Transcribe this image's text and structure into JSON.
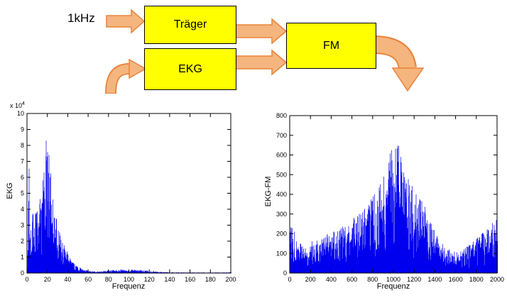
{
  "diagram": {
    "input_label": "1kHz",
    "blocks": {
      "traeger": {
        "label": "Träger"
      },
      "ekg": {
        "label": "EKG"
      },
      "fm": {
        "label": "FM"
      }
    },
    "colors": {
      "block_fill": "#FFFF00",
      "block_border": "#000000",
      "arrow_fill": "#F5B57E",
      "arrow_border": "#E8833A"
    }
  },
  "chart_data": [
    {
      "type": "line",
      "title": "",
      "xlabel": "Frequenz",
      "ylabel": "EKG",
      "xlim": [
        0,
        200
      ],
      "ylim": [
        0,
        10
      ],
      "xticks": [
        0,
        20,
        40,
        60,
        80,
        100,
        120,
        140,
        160,
        180,
        200
      ],
      "yticks": [
        0,
        1,
        2,
        3,
        4,
        5,
        6,
        7,
        8,
        9,
        10
      ],
      "y_multiplier": {
        "base": "x 10",
        "exp": "4"
      },
      "line_color": "#0000EE",
      "grid": false,
      "legend": null,
      "noise_seed": 20,
      "envelope": [
        [
          0,
          0.4
        ],
        [
          2,
          7.2
        ],
        [
          3,
          2.5
        ],
        [
          5,
          3.5
        ],
        [
          7,
          4.8
        ],
        [
          9,
          4.2
        ],
        [
          11,
          5.2
        ],
        [
          13,
          4.6
        ],
        [
          15,
          6.0
        ],
        [
          17,
          7.0
        ],
        [
          18,
          8.7
        ],
        [
          20,
          8.0
        ],
        [
          22,
          7.4
        ],
        [
          24,
          5.2
        ],
        [
          26,
          4.6
        ],
        [
          28,
          4.0
        ],
        [
          30,
          3.1
        ],
        [
          34,
          2.2
        ],
        [
          38,
          1.5
        ],
        [
          42,
          1.0
        ],
        [
          46,
          0.6
        ],
        [
          50,
          0.4
        ],
        [
          55,
          0.25
        ],
        [
          60,
          0.15
        ],
        [
          70,
          0.1
        ],
        [
          80,
          0.18
        ],
        [
          90,
          0.22
        ],
        [
          100,
          0.22
        ],
        [
          110,
          0.2
        ],
        [
          120,
          0.14
        ],
        [
          130,
          0.08
        ],
        [
          140,
          0.05
        ],
        [
          160,
          0.04
        ],
        [
          180,
          0.04
        ],
        [
          200,
          0.05
        ]
      ]
    },
    {
      "type": "line",
      "title": "",
      "xlabel": "Frequenz",
      "ylabel": "EKG-FM",
      "xlim": [
        0,
        2000
      ],
      "ylim": [
        0,
        800
      ],
      "xticks": [
        0,
        200,
        400,
        600,
        800,
        1000,
        1200,
        1400,
        1600,
        1800,
        2000
      ],
      "yticks": [
        0,
        100,
        200,
        300,
        400,
        500,
        600,
        700,
        800
      ],
      "y_multiplier": null,
      "line_color": "#0000EE",
      "grid": false,
      "legend": null,
      "noise_seed": 77,
      "envelope": [
        [
          0,
          280
        ],
        [
          50,
          200
        ],
        [
          100,
          160
        ],
        [
          150,
          150
        ],
        [
          200,
          160
        ],
        [
          250,
          170
        ],
        [
          300,
          180
        ],
        [
          350,
          195
        ],
        [
          400,
          215
        ],
        [
          450,
          225
        ],
        [
          500,
          235
        ],
        [
          550,
          255
        ],
        [
          600,
          275
        ],
        [
          650,
          305
        ],
        [
          700,
          325
        ],
        [
          750,
          355
        ],
        [
          800,
          390
        ],
        [
          850,
          430
        ],
        [
          900,
          490
        ],
        [
          950,
          570
        ],
        [
          1000,
          710
        ],
        [
          1030,
          680
        ],
        [
          1060,
          630
        ],
        [
          1090,
          570
        ],
        [
          1120,
          520
        ],
        [
          1150,
          480
        ],
        [
          1200,
          440
        ],
        [
          1250,
          390
        ],
        [
          1300,
          340
        ],
        [
          1350,
          270
        ],
        [
          1400,
          210
        ],
        [
          1450,
          160
        ],
        [
          1500,
          135
        ],
        [
          1550,
          115
        ],
        [
          1600,
          115
        ],
        [
          1650,
          125
        ],
        [
          1700,
          135
        ],
        [
          1750,
          155
        ],
        [
          1800,
          175
        ],
        [
          1850,
          200
        ],
        [
          1900,
          230
        ],
        [
          1950,
          260
        ],
        [
          2000,
          300
        ]
      ]
    }
  ]
}
